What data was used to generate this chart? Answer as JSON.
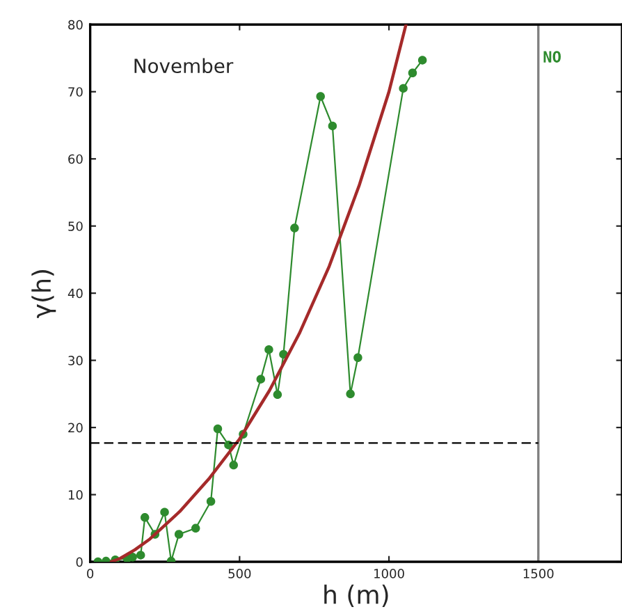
{
  "chart_data": {
    "type": "line",
    "xlabel": "h (m)",
    "ylabel": "γ(h)",
    "annotations": [
      "November",
      {
        "text": "NO",
        "x": 1500,
        "y": 75
      }
    ],
    "series": [
      {
        "color": "#2e8b2e",
        "marker": "circle",
        "line_style": "solid",
        "x": [
          26,
          53,
          84,
          124,
          142,
          169,
          183,
          217,
          249,
          271,
          297,
          353,
          404,
          427,
          463,
          480,
          512,
          571,
          598,
          627,
          647,
          684,
          771,
          811,
          871,
          896,
          1048,
          1079,
          1112
        ],
        "values": [
          0,
          0.1,
          0.3,
          0.5,
          0.7,
          1.0,
          6.6,
          4.1,
          7.4,
          0.1,
          4.1,
          5.0,
          9.0,
          19.8,
          17.4,
          14.4,
          19.0,
          27.2,
          31.6,
          24.9,
          30.9,
          49.7,
          69.3,
          64.9,
          25.0,
          30.4,
          70.5,
          72.8,
          74.7
        ]
      },
      {
        "color": "#a52a2a",
        "marker": "none",
        "line_style": "solid",
        "x": [
          70,
          100,
          150,
          200,
          300,
          400,
          500,
          600,
          700,
          800,
          900,
          1000,
          1057
        ],
        "values": [
          0,
          0.5,
          1.8,
          3.4,
          7.5,
          12.5,
          18.3,
          25.5,
          34,
          44,
          56,
          70,
          80
        ]
      },
      {
        "color": "#000000",
        "marker": "none",
        "line_style": "dashed",
        "x": [
          0,
          1500
        ],
        "values": [
          17.7,
          17.7
        ]
      }
    ],
    "ref_lines": [
      {
        "axis": "x",
        "value": 1500,
        "color": "#808080"
      }
    ],
    "xlim": [
      0,
      1780
    ],
    "xticks": [
      0,
      500,
      1000,
      1500
    ],
    "ylim": [
      0,
      80
    ],
    "yticks": [
      0,
      10,
      20,
      30,
      40,
      50,
      60,
      70,
      80
    ],
    "grid": false,
    "legend": false
  }
}
